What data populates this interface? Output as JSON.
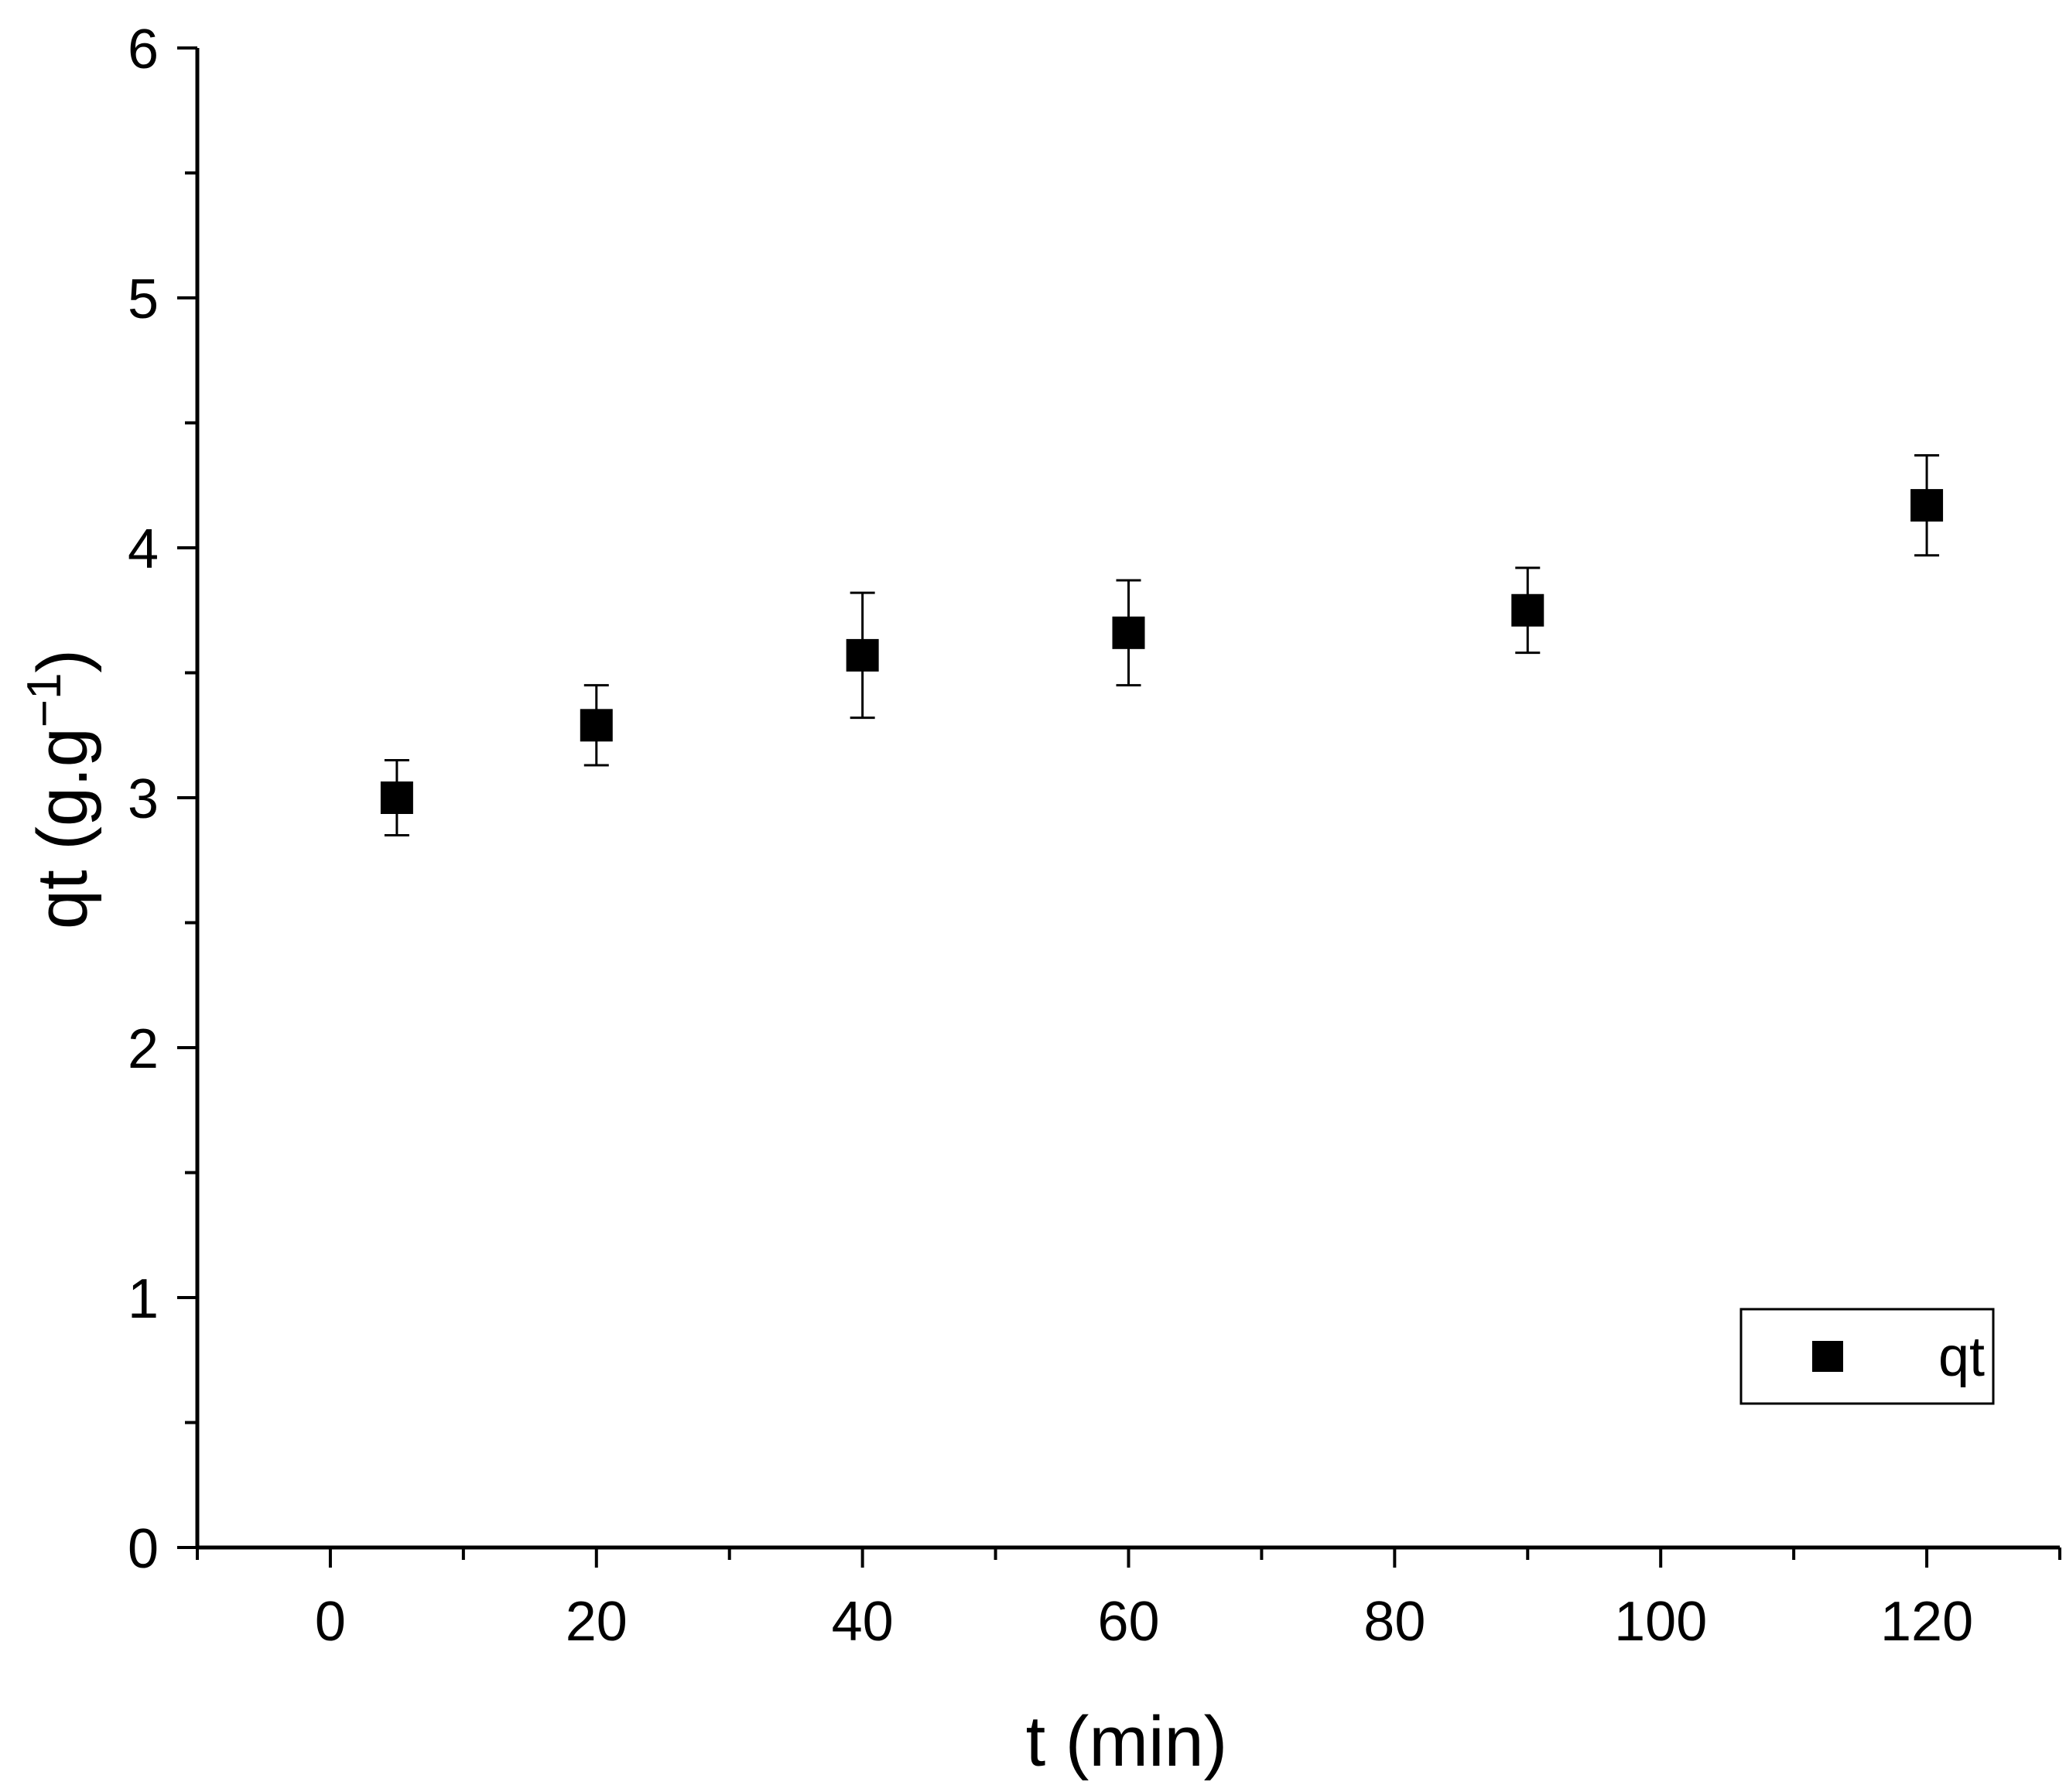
{
  "chart_data": {
    "type": "scatter",
    "xlabel": "t (min)",
    "ylabel_main": "qt (g.g",
    "ylabel_sup": "−1",
    "ylabel_close": ")",
    "xlim": [
      -10,
      130
    ],
    "ylim": [
      0,
      6
    ],
    "x_major_ticks": [
      0,
      20,
      40,
      60,
      80,
      100,
      120
    ],
    "x_minor_ticks": [
      -10,
      10,
      30,
      50,
      70,
      90,
      110,
      130
    ],
    "y_major_ticks": [
      0,
      1,
      2,
      3,
      4,
      5,
      6
    ],
    "y_minor_ticks": [
      0.5,
      1.5,
      2.5,
      3.5,
      4.5,
      5.5
    ],
    "grid": false,
    "legend_position": "bottom-right",
    "series": [
      {
        "name": "qt",
        "marker": "square",
        "color": "#000000",
        "x": [
          5,
          20,
          40,
          60,
          90,
          120
        ],
        "y": [
          3.0,
          3.29,
          3.57,
          3.66,
          3.75,
          4.17
        ],
        "error": [
          0.15,
          0.16,
          0.25,
          0.21,
          0.17,
          0.2
        ]
      }
    ]
  }
}
